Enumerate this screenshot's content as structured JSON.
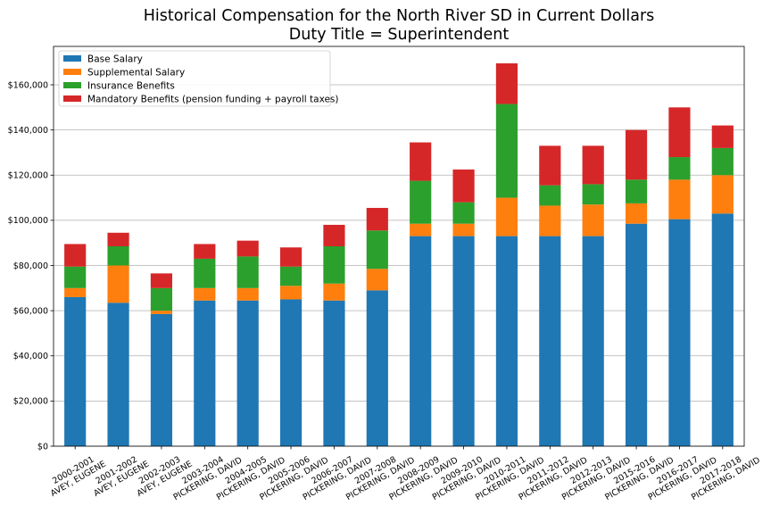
{
  "chart_data": {
    "type": "bar",
    "stacked": true,
    "title_lines": [
      "Historical Compensation for the North River SD in Current Dollars",
      "Duty Title = Superintendent"
    ],
    "categories": [
      [
        "2000-2001",
        "AVEY, EUGENE"
      ],
      [
        "2001-2002",
        "AVEY, EUGENE"
      ],
      [
        "2002-2003",
        "AVEY, EUGENE"
      ],
      [
        "2003-2004",
        "PICKERING, DAVID"
      ],
      [
        "2004-2005",
        "PICKERING, DAVID"
      ],
      [
        "2005-2006",
        "PICKERING, DAVID"
      ],
      [
        "2006-2007",
        "PICKERING, DAVID"
      ],
      [
        "2007-2008",
        "PICKERING, DAVID"
      ],
      [
        "2008-2009",
        "PICKERING, DAVID"
      ],
      [
        "2009-2010",
        "PICKERING, DAVID"
      ],
      [
        "2010-2011",
        "PICKERING, DAVID"
      ],
      [
        "2011-2012",
        "PICKERING, DAVID"
      ],
      [
        "2012-2013",
        "PICKERING, DAVID"
      ],
      [
        "2015-2016",
        "PICKERING, DAVID"
      ],
      [
        "2016-2017",
        "PICKERING, DAVID"
      ],
      [
        "2017-2018",
        "PICKERING, DAVID"
      ]
    ],
    "series": [
      {
        "name": "Base Salary",
        "color": "#1f77b4",
        "values": [
          66000,
          63500,
          58500,
          64500,
          64500,
          65000,
          64500,
          69000,
          93000,
          93000,
          93000,
          93000,
          93000,
          98500,
          100500,
          103000
        ]
      },
      {
        "name": "Supplemental Salary",
        "color": "#ff7f0e",
        "values": [
          4000,
          16500,
          1500,
          5500,
          5500,
          6000,
          7500,
          9500,
          5500,
          5500,
          17000,
          13500,
          14000,
          9000,
          17500,
          17000
        ]
      },
      {
        "name": "Insurance Benefits",
        "color": "#2ca02c",
        "values": [
          9500,
          8500,
          10000,
          13000,
          14000,
          8500,
          16500,
          17000,
          19000,
          9500,
          41500,
          9000,
          9000,
          10500,
          10000,
          12000
        ]
      },
      {
        "name": "Mandatory Benefits (pension funding + payroll taxes)",
        "color": "#d62728",
        "values": [
          10000,
          6000,
          6500,
          6500,
          7000,
          8500,
          9500,
          10000,
          17000,
          14500,
          18000,
          17500,
          17000,
          22000,
          22000,
          10000
        ]
      }
    ],
    "ylim": [
      0,
      177000
    ],
    "yticks": [
      0,
      20000,
      40000,
      60000,
      80000,
      100000,
      120000,
      140000,
      160000
    ],
    "ytick_labels": [
      "$0",
      "$20,000",
      "$40,000",
      "$60,000",
      "$80,000",
      "$100,000",
      "$120,000",
      "$140,000",
      "$160,000"
    ],
    "grid": "y",
    "legend_position": "top-left"
  }
}
